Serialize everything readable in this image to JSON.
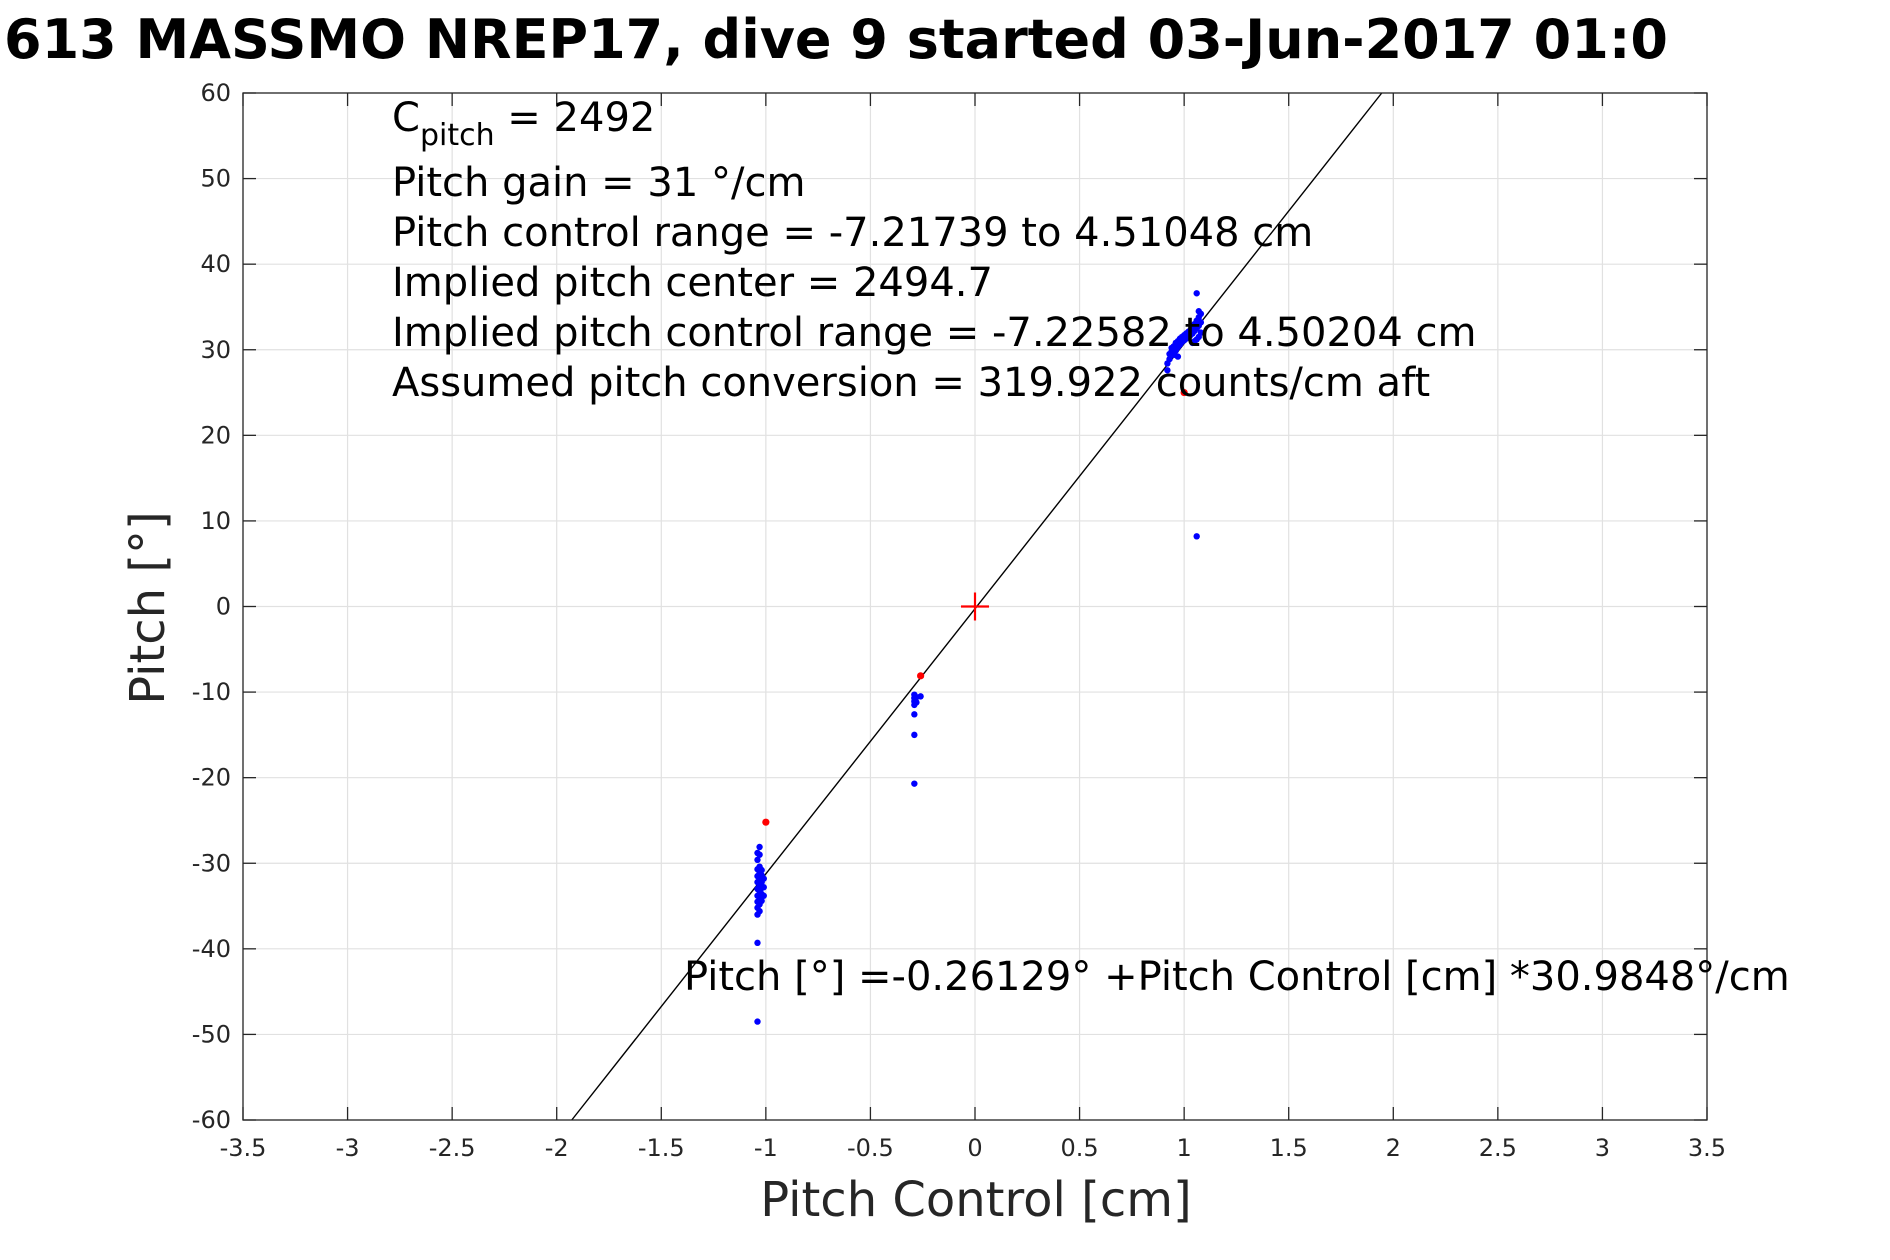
{
  "figure": {
    "title": "613 MASSMO NREP17, dive 9 started 03-Jun-2017 01:0"
  },
  "chart_data": {
    "type": "scatter",
    "title": "613 MASSMO NREP17, dive 9 started 03-Jun-2017 01:0",
    "xlabel": "Pitch Control [cm]",
    "ylabel": "Pitch [°]",
    "xlim": [
      -3.5,
      3.5
    ],
    "ylim": [
      -60,
      60
    ],
    "xticks": [
      -3.5,
      -3,
      -2.5,
      -2,
      -1.5,
      -1,
      -0.5,
      0,
      0.5,
      1,
      1.5,
      2,
      2.5,
      3,
      3.5
    ],
    "xtick_labels": [
      "-3.5",
      "-3",
      "-2.5",
      "-2",
      "-1.5",
      "-1",
      "-0.5",
      "0",
      "0.5",
      "1",
      "1.5",
      "2",
      "2.5",
      "3",
      "3.5"
    ],
    "yticks": [
      -60,
      -50,
      -40,
      -30,
      -20,
      -10,
      0,
      10,
      20,
      30,
      40,
      50,
      60
    ],
    "ytick_labels": [
      "-60",
      "-50",
      "-40",
      "-30",
      "-20",
      "-10",
      "0",
      "10",
      "20",
      "30",
      "40",
      "50",
      "60"
    ],
    "grid": true,
    "colors": {
      "points": "#0000ff",
      "outliers": "#ff0000",
      "center_marker": "#ff0000",
      "fit_line": "#000000",
      "grid": "#e1e1e1"
    },
    "series": [
      {
        "kind": "points",
        "color": "#0000ff",
        "points": [
          [
            -1.04,
            -48.5
          ],
          [
            -1.04,
            -39.3
          ],
          [
            -1.04,
            -36.0
          ],
          [
            -1.04,
            -35.2
          ],
          [
            -1.04,
            -34.5
          ],
          [
            -1.04,
            -33.8
          ],
          [
            -1.04,
            -33.0
          ],
          [
            -1.04,
            -32.2
          ],
          [
            -1.04,
            -31.5
          ],
          [
            -1.04,
            -30.7
          ],
          [
            -1.04,
            -29.6
          ],
          [
            -1.04,
            -28.8
          ],
          [
            -1.03,
            -35.6
          ],
          [
            -1.03,
            -34.8
          ],
          [
            -1.03,
            -34.0
          ],
          [
            -1.03,
            -33.3
          ],
          [
            -1.03,
            -32.6
          ],
          [
            -1.03,
            -31.9
          ],
          [
            -1.03,
            -31.2
          ],
          [
            -1.03,
            -30.4
          ],
          [
            -1.03,
            -29.0
          ],
          [
            -1.03,
            -28.1
          ],
          [
            -1.02,
            -34.4
          ],
          [
            -1.02,
            -33.6
          ],
          [
            -1.02,
            -32.9
          ],
          [
            -1.02,
            -32.2
          ],
          [
            -1.02,
            -31.4
          ],
          [
            -1.02,
            -30.8
          ],
          [
            -1.01,
            -33.8
          ],
          [
            -1.01,
            -32.8
          ],
          [
            -1.01,
            -31.8
          ],
          [
            -0.29,
            -20.7
          ],
          [
            -0.29,
            -15.0
          ],
          [
            -0.29,
            -12.6
          ],
          [
            -0.29,
            -11.5
          ],
          [
            -0.29,
            -11.1
          ],
          [
            -0.29,
            -10.7
          ],
          [
            -0.29,
            -10.3
          ],
          [
            -0.28,
            -11.2
          ],
          [
            -0.28,
            -10.6
          ],
          [
            -0.26,
            -10.5
          ],
          [
            0.92,
            27.6
          ],
          [
            0.92,
            28.4
          ],
          [
            0.93,
            28.9
          ],
          [
            0.93,
            29.5
          ],
          [
            0.94,
            29.8
          ],
          [
            0.94,
            30.2
          ],
          [
            0.95,
            29.4
          ],
          [
            0.95,
            30.4
          ],
          [
            0.96,
            29.9
          ],
          [
            0.96,
            30.8
          ],
          [
            0.97,
            30.3
          ],
          [
            0.97,
            31.0
          ],
          [
            0.98,
            30.6
          ],
          [
            0.98,
            31.3
          ],
          [
            0.99,
            30.9
          ],
          [
            0.99,
            31.5
          ],
          [
            1.0,
            31.1
          ],
          [
            1.0,
            31.7
          ],
          [
            1.01,
            31.3
          ],
          [
            1.01,
            31.9
          ],
          [
            1.02,
            31.5
          ],
          [
            1.02,
            32.1
          ],
          [
            1.03,
            31.7
          ],
          [
            1.03,
            32.3
          ],
          [
            1.04,
            30.8
          ],
          [
            1.04,
            31.9
          ],
          [
            1.04,
            32.6
          ],
          [
            1.05,
            31.0
          ],
          [
            1.05,
            32.2
          ],
          [
            1.05,
            33.0
          ],
          [
            1.06,
            31.2
          ],
          [
            1.06,
            32.5
          ],
          [
            1.06,
            33.4
          ],
          [
            1.07,
            31.5
          ],
          [
            1.07,
            32.8
          ],
          [
            1.07,
            33.8
          ],
          [
            1.07,
            34.5
          ],
          [
            1.08,
            32.0
          ],
          [
            1.08,
            33.2
          ],
          [
            1.08,
            34.2
          ],
          [
            1.06,
            36.6
          ],
          [
            1.06,
            8.2
          ],
          [
            0.99,
            31.3
          ],
          [
            0.97,
            29.2
          ]
        ]
      },
      {
        "kind": "outliers",
        "color": "#ff0000",
        "points": [
          [
            -1.0,
            -25.2
          ],
          [
            -0.26,
            -8.1
          ],
          [
            1.0,
            25.0
          ]
        ]
      },
      {
        "kind": "center_marker",
        "color": "#ff0000",
        "points": [
          [
            0,
            0
          ]
        ]
      },
      {
        "kind": "fit_line",
        "color": "#000000",
        "intercept": -0.26129,
        "slope": 30.9848
      }
    ],
    "annotations": {
      "cpitch_prefix": "C",
      "cpitch_sub": "pitch",
      "cpitch_value": " = 2492",
      "lines": [
        "Pitch gain = 31 °/cm",
        "Pitch control range = -7.21739 to 4.51048 cm",
        "Implied pitch center = 2494.7",
        "Implied pitch control range = -7.22582 to 4.50204 cm",
        "Assumed pitch conversion = 319.922 counts/cm aft"
      ],
      "fit_equation": "Pitch [°] =-0.26129° +Pitch Control [cm] *30.9848°/cm"
    }
  }
}
